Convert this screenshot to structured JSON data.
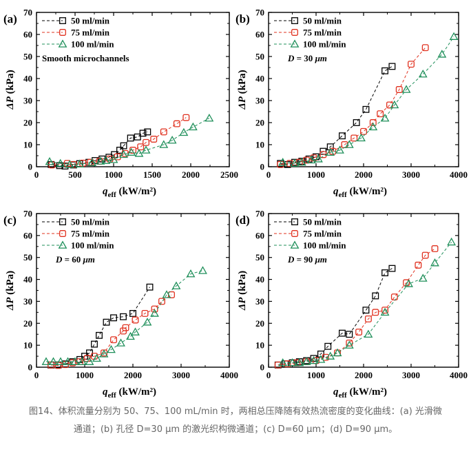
{
  "caption": {
    "line1": "图14、体积流量分别为 50、75、100 mL/min 时，两相总压降随有效热流密度的变化曲线：(a) 光滑微",
    "line2": "通道；(b) 孔径 D=30 μm 的激光织构微通道；(c) D=60 μm；(d) D=90 μm。"
  },
  "chart_data": [
    {
      "panel": "(a)",
      "type": "scatter",
      "xlabel": "q_eff (kW/m²)",
      "ylabel": "ΔP (kPa)",
      "xlim": [
        0,
        2500
      ],
      "ylim": [
        0,
        70
      ],
      "xticks": [
        0,
        500,
        1000,
        1500,
        2000,
        2500
      ],
      "yticks": [
        0,
        10,
        20,
        30,
        40,
        50,
        60,
        70
      ],
      "annotation": "Smooth microchannels",
      "legend_position": "top-left",
      "series": [
        {
          "name": "50 ml/min",
          "color": "#000000",
          "marker": "square",
          "x": [
            190,
            300,
            370,
            480,
            560,
            680,
            760,
            850,
            940,
            1010,
            1080,
            1130,
            1220,
            1310,
            1380,
            1440
          ],
          "y": [
            1.0,
            0.5,
            0.3,
            0.8,
            1.4,
            2.0,
            2.8,
            3.5,
            4.3,
            5.5,
            7.5,
            9.5,
            13.0,
            13.5,
            15.2,
            15.8
          ]
        },
        {
          "name": "75 ml/min",
          "color": "#e0301e",
          "marker": "circle",
          "x": [
            200,
            400,
            480,
            600,
            700,
            820,
            950,
            1050,
            1150,
            1250,
            1350,
            1420,
            1520,
            1650,
            1820,
            1940
          ],
          "y": [
            0.8,
            1.5,
            1.0,
            1.6,
            2.0,
            2.5,
            3.5,
            4.5,
            6.0,
            7.5,
            9.0,
            11.0,
            12.5,
            15.8,
            19.5,
            22.3
          ]
        },
        {
          "name": "100 ml/min",
          "color": "#1f8f5a",
          "marker": "triangle",
          "x": [
            170,
            310,
            430,
            560,
            720,
            830,
            900,
            1000,
            1130,
            1230,
            1330,
            1420,
            1650,
            1760,
            1910,
            2030,
            2240
          ],
          "y": [
            2.3,
            1.5,
            1.0,
            1.2,
            1.8,
            2.5,
            2.8,
            3.2,
            5.5,
            6.5,
            6.0,
            7.5,
            10.0,
            12.0,
            15.5,
            18.0,
            22.0
          ]
        }
      ]
    },
    {
      "panel": "(b)",
      "type": "scatter",
      "xlabel": "q_eff (kW/m²)",
      "ylabel": "ΔP (kPa)",
      "xlim": [
        0,
        4000
      ],
      "ylim": [
        0,
        70
      ],
      "xticks": [
        0,
        1000,
        2000,
        3000,
        4000
      ],
      "yticks": [
        0,
        10,
        20,
        30,
        40,
        50,
        60,
        70
      ],
      "annotation": "D = 30 μm",
      "legend_position": "top-left",
      "series": [
        {
          "name": "50 ml/min",
          "color": "#000000",
          "marker": "square",
          "x": [
            250,
            400,
            550,
            700,
            850,
            1000,
            1150,
            1300,
            1550,
            1850,
            2050,
            2450,
            2600
          ],
          "y": [
            1.5,
            1.0,
            2.0,
            2.5,
            3.5,
            4.5,
            7.0,
            9.0,
            14.0,
            20.0,
            26.0,
            43.5,
            45.5
          ]
        },
        {
          "name": "75 ml/min",
          "color": "#e0301e",
          "marker": "circle",
          "x": [
            250,
            450,
            650,
            800,
            950,
            1150,
            1350,
            1600,
            1800,
            2000,
            2200,
            2350,
            2550,
            2750,
            3000,
            3300
          ],
          "y": [
            1.0,
            1.5,
            2.0,
            3.0,
            4.0,
            5.5,
            7.0,
            10.0,
            13.0,
            16.0,
            20.0,
            24.0,
            28.0,
            35.0,
            46.5,
            54.0
          ]
        },
        {
          "name": "100 ml/min",
          "color": "#1f8f5a",
          "marker": "triangle",
          "x": [
            300,
            550,
            700,
            900,
            1050,
            1300,
            1500,
            1700,
            1950,
            2200,
            2450,
            2650,
            2900,
            3250,
            3650,
            3900
          ],
          "y": [
            2.0,
            1.5,
            2.0,
            3.0,
            3.5,
            6.5,
            7.5,
            10.0,
            13.0,
            18.0,
            22.0,
            28.0,
            35.0,
            42.0,
            51.0,
            59.0
          ]
        }
      ]
    },
    {
      "panel": "(c)",
      "type": "scatter",
      "xlabel": "q_eff (kW/m²)",
      "ylabel": "ΔP (kPa)",
      "xlim": [
        0,
        4000
      ],
      "ylim": [
        0,
        70
      ],
      "xticks": [
        0,
        1000,
        2000,
        3000,
        4000
      ],
      "yticks": [
        0,
        10,
        20,
        30,
        40,
        50,
        60,
        70
      ],
      "annotation": "D = 60 μm",
      "legend_position": "top-left",
      "series": [
        {
          "name": "50 ml/min",
          "color": "#000000",
          "marker": "square",
          "x": [
            300,
            450,
            600,
            750,
            900,
            1000,
            1100,
            1200,
            1300,
            1450,
            1600,
            1800,
            2000,
            2350
          ],
          "y": [
            1.0,
            1.0,
            1.5,
            2.5,
            3.5,
            5.0,
            6.5,
            10.5,
            14.5,
            20.5,
            22.5,
            23.0,
            24.5,
            36.5
          ]
        },
        {
          "name": "75 ml/min",
          "color": "#e0301e",
          "marker": "circle",
          "x": [
            300,
            450,
            600,
            750,
            900,
            1050,
            1200,
            1400,
            1600,
            1800,
            1850,
            2050,
            2250,
            2450,
            2600,
            2800
          ],
          "y": [
            1.0,
            0.8,
            1.2,
            2.0,
            2.5,
            4.0,
            5.0,
            6.5,
            12.5,
            16.5,
            18.0,
            21.5,
            24.5,
            26.5,
            30.0,
            33.0
          ]
        },
        {
          "name": "100 ml/min",
          "color": "#1f8f5a",
          "marker": "triangle",
          "x": [
            200,
            350,
            500,
            650,
            800,
            950,
            1100,
            1250,
            1400,
            1550,
            1750,
            1950,
            2050,
            2300,
            2450,
            2700,
            2900,
            3200,
            3450
          ],
          "y": [
            2.5,
            2.5,
            2.5,
            2.5,
            2.5,
            2.5,
            2.5,
            4.0,
            6.0,
            8.0,
            11.0,
            14.0,
            16.0,
            20.5,
            24.5,
            33.0,
            37.0,
            42.5,
            44.0
          ]
        }
      ]
    },
    {
      "panel": "(d)",
      "type": "scatter",
      "xlabel": "q_eff (kW/m²)",
      "ylabel": "ΔP (kPa)",
      "xlim": [
        0,
        4000
      ],
      "ylim": [
        0,
        70
      ],
      "xticks": [
        0,
        1000,
        2000,
        3000,
        4000
      ],
      "yticks": [
        0,
        10,
        20,
        30,
        40,
        50,
        60,
        70
      ],
      "annotation": "D = 90 μm",
      "legend_position": "top-left",
      "series": [
        {
          "name": "50 ml/min",
          "color": "#000000",
          "marker": "square",
          "x": [
            200,
            350,
            500,
            650,
            800,
            950,
            1100,
            1250,
            1550,
            1700,
            2050,
            2250,
            2450,
            2600
          ],
          "y": [
            1.0,
            1.5,
            2.0,
            2.5,
            3.0,
            4.0,
            6.0,
            9.5,
            15.5,
            15.0,
            26.0,
            32.5,
            43.0,
            45.0
          ]
        },
        {
          "name": "75 ml/min",
          "color": "#e0301e",
          "marker": "circle",
          "x": [
            200,
            400,
            600,
            800,
            1000,
            1200,
            1450,
            1700,
            1900,
            2100,
            2250,
            2450,
            2650,
            2900,
            3150,
            3300,
            3500
          ],
          "y": [
            1.0,
            1.5,
            2.0,
            2.5,
            3.0,
            4.5,
            6.5,
            11.0,
            16.0,
            22.0,
            25.0,
            26.0,
            32.0,
            38.5,
            46.5,
            51.0,
            54.0
          ]
        },
        {
          "name": "100 ml/min",
          "color": "#1f8f5a",
          "marker": "triangle",
          "x": [
            300,
            500,
            650,
            800,
            950,
            1100,
            1300,
            1450,
            1700,
            2100,
            2450,
            2950,
            3250,
            3500,
            3850
          ],
          "y": [
            2.0,
            2.0,
            2.0,
            2.5,
            3.0,
            3.5,
            5.0,
            6.5,
            10.0,
            15.0,
            25.0,
            38.0,
            40.5,
            47.5,
            57.0
          ]
        }
      ]
    }
  ]
}
